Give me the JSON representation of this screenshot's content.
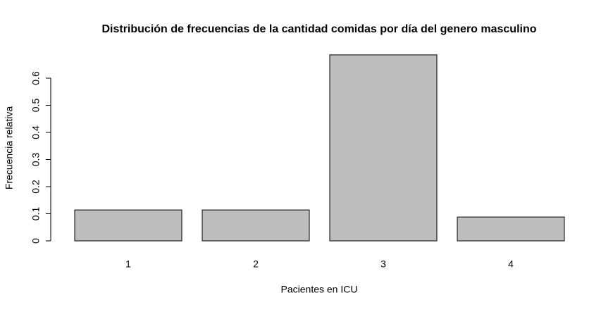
{
  "chart_data": {
    "type": "bar",
    "title": "Distribución de frecuencias de la cantidad comidas por día del genero masculino",
    "x_label": "Pacientes en ICU",
    "y_label": "Frecuencia relativa",
    "categories": [
      "1",
      "2",
      "3",
      "4"
    ],
    "values": [
      0.114,
      0.114,
      0.686,
      0.088
    ],
    "color": "#bebebe",
    "ylim": [
      0,
      0.7
    ],
    "yticks": [
      0.0,
      0.1,
      0.2,
      0.3,
      0.4,
      0.5,
      0.6
    ],
    "grid": false
  }
}
